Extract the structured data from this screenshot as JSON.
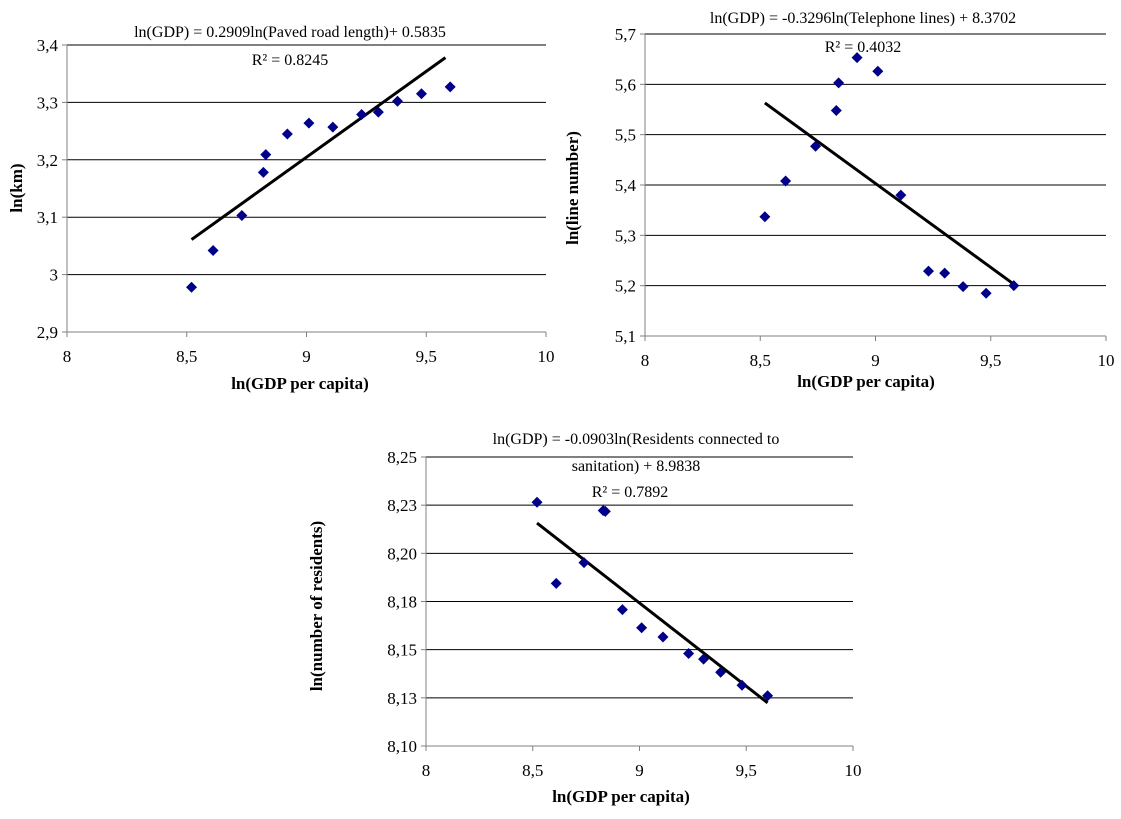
{
  "chart_data": [
    {
      "type": "scatter",
      "xlabel": "ln(GDP per capita)",
      "ylabel": "ln(km)",
      "equation": "ln(GDP) = 0.2909ln(Paved road length)+ 0.5835",
      "r2_text": "R² = 0.8245",
      "xlim": [
        8,
        10
      ],
      "ylim": [
        2.9,
        3.4
      ],
      "xticks": [
        8,
        8.5,
        9,
        9.5,
        10
      ],
      "xtick_labels": [
        "8",
        "8,5",
        "9",
        "9,5",
        "10"
      ],
      "yticks": [
        2.9,
        3.0,
        3.1,
        3.2,
        3.3,
        3.4
      ],
      "ytick_labels": [
        "2,9",
        "3",
        "3,1",
        "3,2",
        "3,3",
        "3,4"
      ],
      "grid": "horizontal",
      "marker_color": "#00008B",
      "points": [
        [
          8.52,
          2.978
        ],
        [
          8.61,
          3.042
        ],
        [
          8.73,
          3.103
        ],
        [
          8.82,
          3.178
        ],
        [
          8.83,
          3.209
        ],
        [
          8.92,
          3.245
        ],
        [
          9.01,
          3.264
        ],
        [
          9.11,
          3.257
        ],
        [
          9.23,
          3.279
        ],
        [
          9.3,
          3.283
        ],
        [
          9.38,
          3.302
        ],
        [
          9.48,
          3.315
        ],
        [
          9.6,
          3.327
        ]
      ],
      "trendline": [
        [
          8.52,
          3.061
        ],
        [
          9.58,
          3.378
        ]
      ]
    },
    {
      "type": "scatter",
      "xlabel": "ln(GDP per capita)",
      "ylabel": "ln(line number)",
      "equation": "ln(GDP) = -0.3296ln(Telephone lines) + 8.3702",
      "r2_text": "R² = 0.4032",
      "xlim": [
        8,
        10
      ],
      "ylim": [
        5.1,
        5.7
      ],
      "xticks": [
        8,
        8.5,
        9,
        9.5,
        10
      ],
      "xtick_labels": [
        "8",
        "8,5",
        "9",
        "9,5",
        "10"
      ],
      "yticks": [
        5.1,
        5.2,
        5.3,
        5.4,
        5.5,
        5.6,
        5.7
      ],
      "ytick_labels": [
        "5,1",
        "5,2",
        "5,3",
        "5,4",
        "5,5",
        "5,6",
        "5,7"
      ],
      "grid": "horizontal",
      "marker_color": "#00008B",
      "points": [
        [
          8.52,
          5.337
        ],
        [
          8.61,
          5.408
        ],
        [
          8.74,
          5.477
        ],
        [
          8.83,
          5.548
        ],
        [
          8.84,
          5.603
        ],
        [
          8.92,
          5.653
        ],
        [
          9.01,
          5.626
        ],
        [
          9.11,
          5.38
        ],
        [
          9.23,
          5.229
        ],
        [
          9.3,
          5.225
        ],
        [
          9.38,
          5.198
        ],
        [
          9.48,
          5.185
        ],
        [
          9.6,
          5.2
        ]
      ],
      "trendline": [
        [
          8.52,
          5.563
        ],
        [
          9.6,
          5.203
        ]
      ]
    },
    {
      "type": "scatter",
      "xlabel": "ln(GDP per capita)",
      "ylabel": "ln(number of residents)",
      "equation_lines": [
        "ln(GDP) = -0.0903ln(Residents connected to",
        "sanitation) + 8.9838"
      ],
      "r2_text": "R² = 0.7892",
      "xlim": [
        8,
        10
      ],
      "ylim": [
        8.1,
        8.25
      ],
      "xticks": [
        8,
        8.5,
        9,
        9.5,
        10
      ],
      "xtick_labels": [
        "8",
        "8,5",
        "9",
        "9,5",
        "10"
      ],
      "yticks": [
        8.1,
        8.125,
        8.15,
        8.175,
        8.2,
        8.225,
        8.25
      ],
      "ytick_labels": [
        "8,10",
        "8,13",
        "8,15",
        "8,18",
        "8,20",
        "8,23",
        "8,25"
      ],
      "grid": "horizontal",
      "marker_color": "#00008B",
      "points": [
        [
          8.52,
          8.2265
        ],
        [
          8.61,
          8.1844
        ],
        [
          8.74,
          8.1952
        ],
        [
          8.83,
          8.2222
        ],
        [
          8.84,
          8.2218
        ],
        [
          8.92,
          8.1708
        ],
        [
          9.01,
          8.1614
        ],
        [
          9.11,
          8.1566
        ],
        [
          9.23,
          8.148
        ],
        [
          9.3,
          8.1451
        ],
        [
          9.38,
          8.1383
        ],
        [
          9.48,
          8.1315
        ],
        [
          9.6,
          8.1261
        ]
      ],
      "trendline": [
        [
          8.52,
          8.2157
        ],
        [
          9.6,
          8.1224
        ]
      ]
    }
  ]
}
